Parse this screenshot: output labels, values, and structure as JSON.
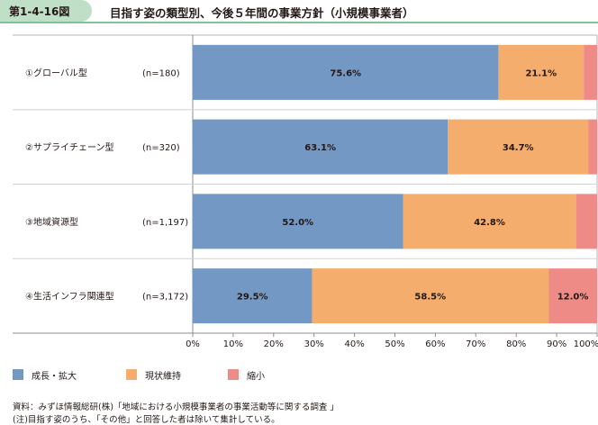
{
  "figure": {
    "number": "第1-4-16図",
    "title": "目指す姿の類型別、今後５年間の事業方針（小規模事業者）"
  },
  "chart_data": {
    "type": "bar",
    "orientation": "horizontal",
    "stacked": true,
    "categories": [
      "①グローバル型",
      "②サプライチェーン型",
      "③地域資源型",
      "④生活インフラ関連型"
    ],
    "sample_sizes": [
      "(n=180)",
      "(n=320)",
      "(n=1,197)",
      "(n=3,172)"
    ],
    "series": [
      {
        "name": "成長・拡大",
        "color": "#7398c4",
        "values": [
          75.6,
          63.1,
          52.0,
          29.5
        ],
        "labels": [
          "75.6%",
          "63.1%",
          "52.0%",
          "29.5%"
        ]
      },
      {
        "name": "現状維持",
        "color": "#f4ad6c",
        "values": [
          21.1,
          34.7,
          42.8,
          58.5
        ],
        "labels": [
          "21.1%",
          "34.7%",
          "42.8%",
          "58.5%"
        ]
      },
      {
        "name": "縮小",
        "color": "#ef8b87",
        "values": [
          3.3,
          2.2,
          5.2,
          12.0
        ],
        "labels": [
          "",
          "",
          "",
          "12.0%"
        ]
      }
    ],
    "xlim": [
      0,
      100
    ],
    "xticks": [
      "0%",
      "10%",
      "20%",
      "30%",
      "40%",
      "50%",
      "60%",
      "70%",
      "80%",
      "90%",
      "100%"
    ],
    "grid": false,
    "legend_position": "bottom-left"
  },
  "notes": {
    "source": "資料：みずほ情報総研(株)「地域における小規模事業者の事業活動等に関する調査 」",
    "note": "(注)目指す姿のうち、「その他」と回答した者は除いて集計している。"
  }
}
